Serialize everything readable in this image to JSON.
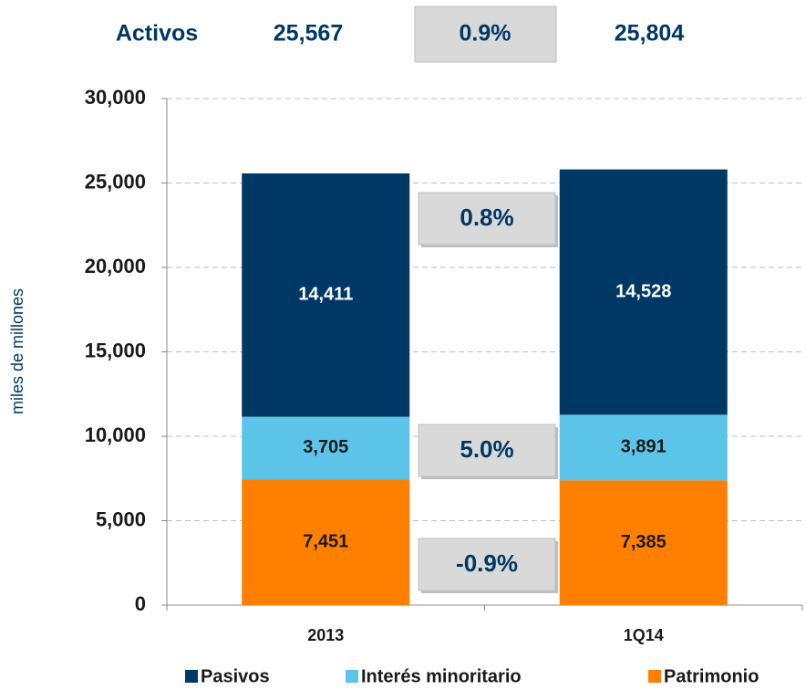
{
  "chart_data": {
    "type": "stacked_bar",
    "header": {
      "label": "Activos",
      "values": [
        25567,
        25804
      ],
      "value_labels": [
        "25,567",
        "25,804"
      ],
      "change": "0.9%"
    },
    "ylabel": "miles de millones",
    "categories": [
      "2013",
      "1Q14"
    ],
    "series": [
      {
        "name": "Pasivos",
        "color": "#003865",
        "values": [
          14411,
          14528
        ],
        "value_labels": [
          "14,411",
          "14,528"
        ],
        "change": "0.8%"
      },
      {
        "name": "Interés minoritario",
        "color": "#5bc4e8",
        "values": [
          3705,
          3891
        ],
        "value_labels": [
          "3,705",
          "3,891"
        ],
        "change": "5.0%"
      },
      {
        "name": "Patrimonio",
        "color": "#ff7f00",
        "values": [
          7451,
          7385
        ],
        "value_labels": [
          "7,451",
          "7,385"
        ],
        "change": "-0.9%"
      }
    ],
    "ylim": [
      0,
      30000
    ],
    "yticks": [
      0,
      {
        "value": 5000,
        "label": "5,000"
      },
      {
        "value": 10000,
        "label": "10,000"
      },
      {
        "value": 15000,
        "label": "15,000"
      },
      {
        "value": 20000,
        "label": "20,000"
      },
      {
        "value": 25000,
        "label": "25,000"
      },
      {
        "value": 30000,
        "label": "30,000"
      }
    ],
    "grid": true
  }
}
